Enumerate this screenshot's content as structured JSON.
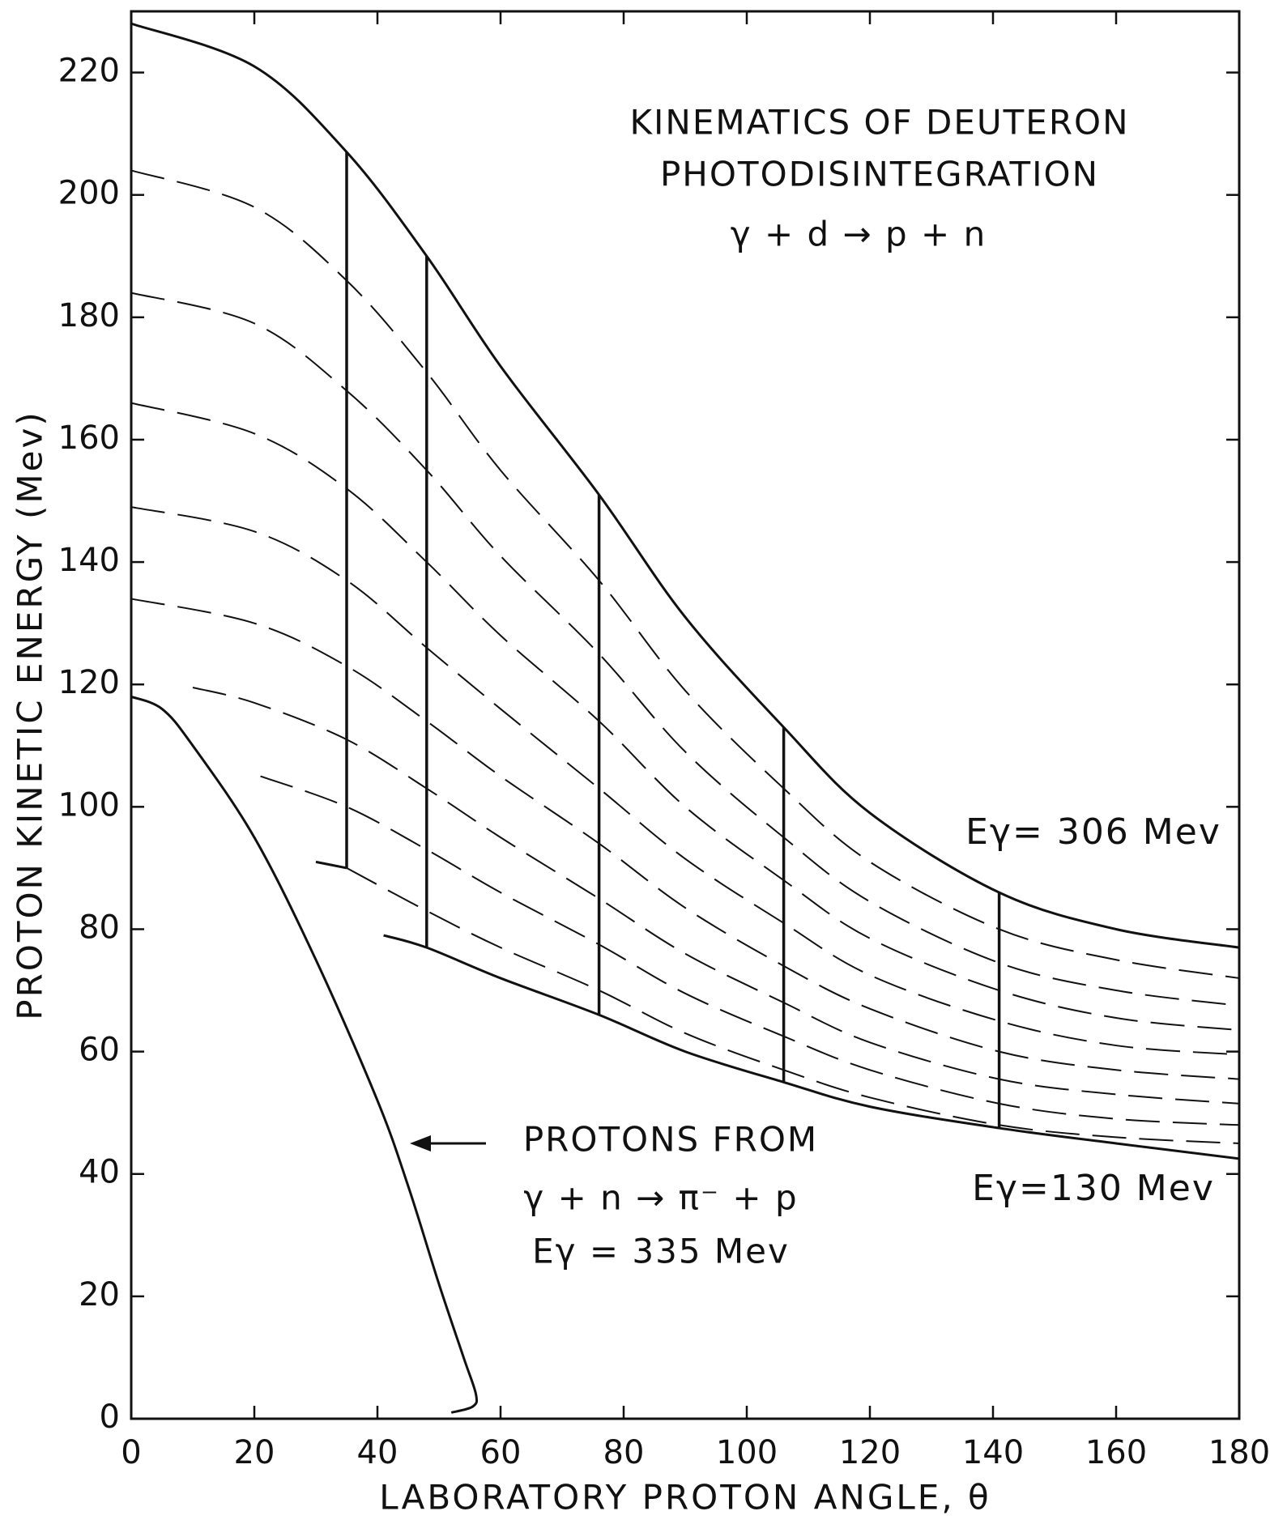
{
  "chart_data": {
    "type": "line",
    "title": [
      "KINEMATICS OF DEUTERON",
      "PHOTODISINTEGRATION",
      "γ + d → p + n"
    ],
    "xlabel": "LABORATORY PROTON ANGLE, θ",
    "ylabel": "PROTON KINETIC ENERGY (Mev)",
    "xlim": [
      0,
      180
    ],
    "ylim": [
      0,
      230
    ],
    "xticks": [
      0,
      20,
      40,
      60,
      80,
      100,
      120,
      140,
      160,
      180
    ],
    "yticks": [
      0,
      20,
      40,
      60,
      80,
      100,
      120,
      140,
      160,
      180,
      200,
      220
    ],
    "grid": false,
    "annotations": [
      "Eγ= 306 Mev",
      "Eγ=130 Mev",
      "PROTONS FROM",
      "γ + n → π⁻ + p",
      "Eγ = 335 Mev"
    ],
    "series": [
      {
        "color": "#111",
        "dash": false,
        "x": [
          0,
          20,
          35,
          48,
          60,
          76,
          90,
          106,
          120,
          141,
          160,
          180
        ],
        "values": [
          228,
          221,
          207,
          190,
          172,
          151,
          131,
          113,
          99,
          86,
          80,
          77
        ]
      },
      {
        "color": "#111",
        "dash": true,
        "x": [
          0,
          20,
          35,
          48,
          60,
          76,
          90,
          106,
          120,
          141,
          160,
          180
        ],
        "values": [
          204,
          198,
          186,
          171,
          155,
          137,
          119,
          103,
          91,
          80,
          75,
          72
        ]
      },
      {
        "color": "#111",
        "dash": true,
        "x": [
          0,
          20,
          35,
          48,
          60,
          76,
          90,
          106,
          120,
          141,
          160,
          180
        ],
        "values": [
          184,
          179,
          168,
          155,
          141,
          125,
          109,
          95,
          84.5,
          74.5,
          70,
          67.5
        ]
      },
      {
        "color": "#111",
        "dash": true,
        "x": [
          0,
          20,
          35,
          48,
          60,
          76,
          90,
          106,
          120,
          141,
          160,
          180
        ],
        "values": [
          166,
          161,
          152,
          140,
          128,
          114,
          100,
          88,
          78.5,
          70,
          65.5,
          63.5
        ]
      },
      {
        "color": "#111",
        "dash": true,
        "x": [
          0,
          20,
          35,
          48,
          60,
          76,
          90,
          106,
          120,
          141,
          160,
          180
        ],
        "values": [
          149,
          145,
          137,
          126,
          116,
          103,
          91.5,
          81,
          72.5,
          65,
          61,
          59.5
        ]
      },
      {
        "color": "#111",
        "dash": true,
        "x": [
          0,
          20,
          35,
          48,
          60,
          76,
          90,
          106,
          120,
          141,
          160,
          180
        ],
        "values": [
          134,
          130,
          123,
          114,
          105,
          94,
          83.5,
          74,
          67,
          60,
          57,
          55.5
        ]
      },
      {
        "color": "#111",
        "dash": true,
        "x": [
          10,
          20,
          35,
          48,
          60,
          76,
          90,
          106,
          120,
          141,
          160,
          180
        ],
        "values": [
          119.5,
          117,
          111,
          103,
          95,
          85,
          76,
          68,
          61.5,
          55.5,
          53,
          51.5
        ]
      },
      {
        "color": "#111",
        "dash": true,
        "x": [
          21,
          35,
          48,
          60,
          76,
          90,
          106,
          120,
          141,
          160,
          180
        ],
        "values": [
          105,
          100,
          93,
          86,
          77.5,
          69.5,
          62.5,
          57,
          51.5,
          49,
          48
        ]
      },
      {
        "color": "#111",
        "dash": true,
        "x": [
          35,
          48,
          60,
          76,
          90,
          106,
          120,
          141,
          160,
          180
        ],
        "values": [
          90,
          83,
          77,
          70,
          63,
          57,
          52.5,
          48,
          46,
          45
        ]
      },
      {
        "color": "#111",
        "dash": false,
        "x": [
          30,
          35
        ],
        "values": [
          91,
          90
        ]
      },
      {
        "color": "#111",
        "dash": false,
        "x": [
          41,
          48,
          60,
          76,
          90,
          106,
          120,
          141,
          160,
          180
        ],
        "values": [
          79,
          77,
          72,
          66,
          60,
          55,
          51,
          47.5,
          45,
          42.5
        ]
      },
      {
        "color": "#111",
        "dash": false,
        "x": [
          0,
          5,
          10,
          20,
          30,
          40,
          45,
          50,
          54,
          56,
          55.5,
          52
        ],
        "values": [
          118,
          116,
          110,
          95,
          75,
          52,
          38,
          22,
          10,
          4,
          2,
          1
        ]
      }
    ],
    "verticals": [
      {
        "x": 35,
        "y": [
          90,
          207
        ]
      },
      {
        "x": 48,
        "y": [
          77,
          190
        ]
      },
      {
        "x": 76,
        "y": [
          66,
          151
        ]
      },
      {
        "x": 106,
        "y": [
          55,
          113
        ]
      },
      {
        "x": 141,
        "y": [
          47.5,
          86
        ]
      }
    ]
  }
}
